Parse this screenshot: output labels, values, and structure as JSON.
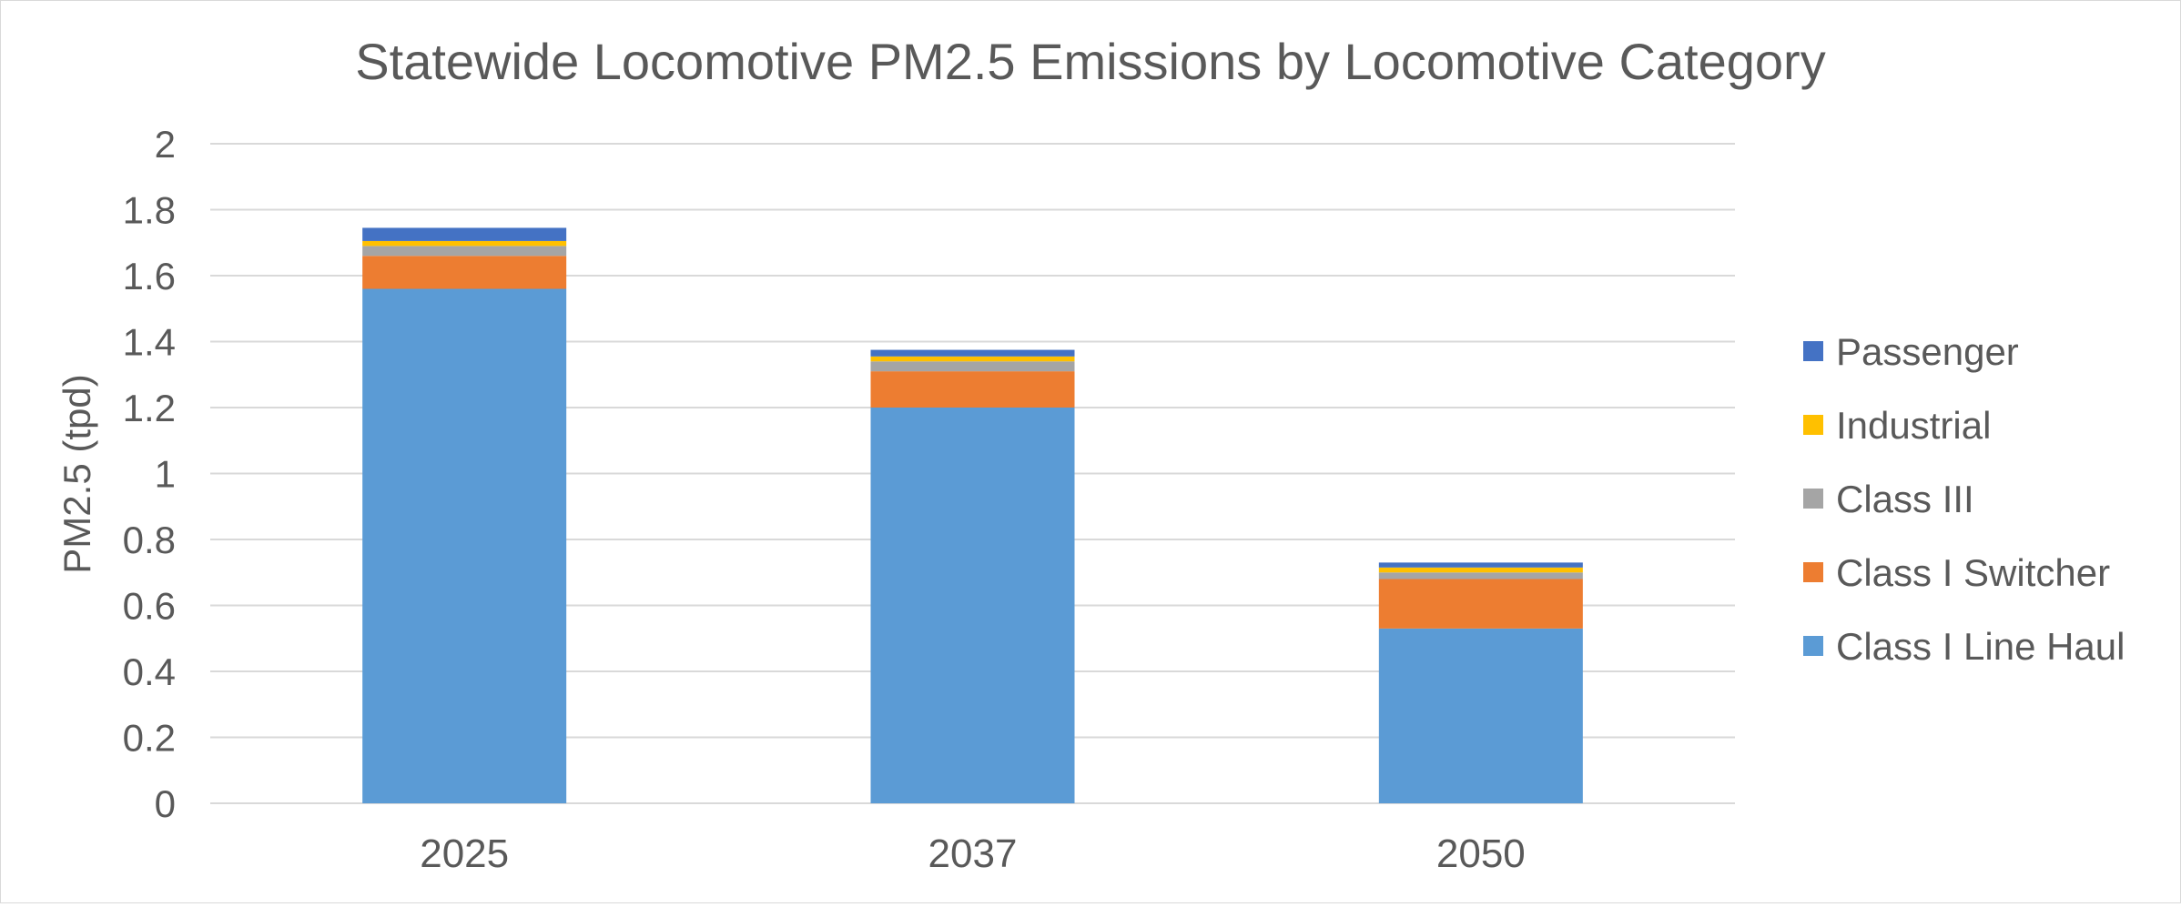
{
  "chart_data": {
    "type": "bar",
    "stacked": true,
    "title": "Statewide Locomotive PM2.5 Emissions by Locomotive Category",
    "xlabel": "",
    "ylabel": "PM2.5 (tpd)",
    "categories": [
      "2025",
      "2037",
      "2050"
    ],
    "ylim": [
      0,
      2
    ],
    "yticks": [
      "0",
      "0.2",
      "0.4",
      "0.6",
      "0.8",
      "1",
      "1.2",
      "1.4",
      "1.6",
      "1.8",
      "2"
    ],
    "grid": true,
    "legend_position": "right",
    "series": [
      {
        "name": "Class I Line Haul",
        "color": "#5b9bd5",
        "values": [
          1.56,
          1.2,
          0.53
        ]
      },
      {
        "name": "Class I Switcher",
        "color": "#ed7d31",
        "values": [
          0.1,
          0.11,
          0.15
        ]
      },
      {
        "name": "Class III",
        "color": "#a5a5a5",
        "values": [
          0.03,
          0.03,
          0.02
        ]
      },
      {
        "name": "Industrial",
        "color": "#ffc000",
        "values": [
          0.015,
          0.015,
          0.015
        ]
      },
      {
        "name": "Passenger",
        "color": "#4472c4",
        "values": [
          0.04,
          0.02,
          0.015
        ]
      }
    ]
  }
}
